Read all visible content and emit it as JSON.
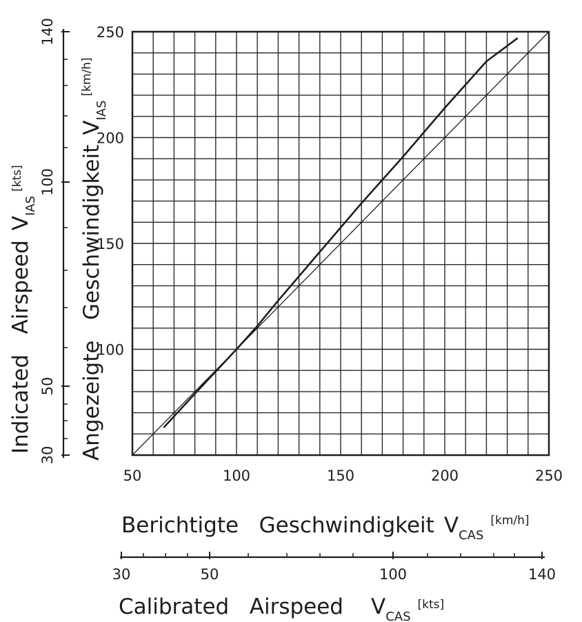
{
  "chart_data": {
    "type": "line",
    "x_axis": {
      "label_main": "Berichtigte   Geschwindigkeit",
      "label_symbol": "V",
      "label_subscript": "CAS",
      "label_unit": "[km/h]",
      "range": [
        50,
        250
      ],
      "ticks": [
        50,
        100,
        150,
        200,
        250
      ],
      "tick_labels": [
        "50",
        "100",
        "150",
        "200",
        "250"
      ],
      "grid_step": 10
    },
    "y_axis": {
      "label_main": "Angezeigte   Geschwindigkeit",
      "label_symbol": "V",
      "label_subscript": "IAS",
      "label_unit": "[km/h]",
      "range": [
        50,
        250
      ],
      "ticks": [
        100,
        150,
        200,
        250
      ],
      "tick_labels": [
        "100",
        "150",
        "200",
        "250"
      ],
      "grid_step": 10
    },
    "secondary_x_axis": {
      "label_main": "Calibrated   Airspeed",
      "label_symbol": "V",
      "label_subscript": "CAS",
      "label_unit": "[kts]",
      "tick_labels": [
        "30",
        "50",
        "100",
        "140"
      ],
      "tick_values_kts": [
        30,
        50,
        100,
        140
      ]
    },
    "secondary_y_axis": {
      "label_main": "Indicated   Airspeed",
      "label_symbol": "V",
      "label_subscript": "IAS",
      "label_unit": "[kts]",
      "tick_labels": [
        "30",
        "50",
        "100",
        "140"
      ],
      "tick_values_kts": [
        30,
        50,
        100,
        140
      ]
    },
    "grid": true,
    "series": [
      {
        "role": "reference",
        "x": [
          50,
          250
        ],
        "y": [
          50,
          250
        ]
      },
      {
        "role": "calibration",
        "x": [
          65,
          80,
          100,
          110,
          120,
          140,
          160,
          180,
          200,
          220,
          235
        ],
        "y": [
          63,
          79,
          100,
          111,
          123,
          146,
          169,
          191,
          214,
          236,
          247
        ]
      }
    ]
  }
}
